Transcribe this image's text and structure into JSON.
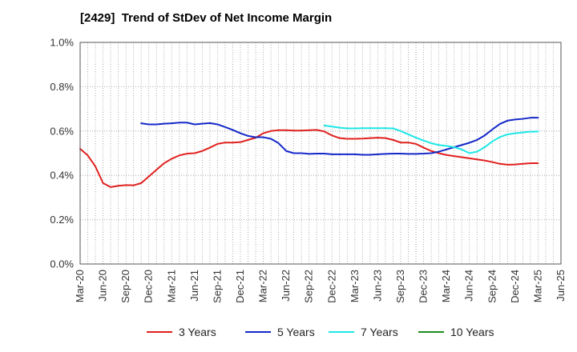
{
  "chart_data": {
    "type": "line",
    "title": "[2429]  Trend of StDev of Net Income Margin",
    "xlabel": "",
    "ylabel": "",
    "x_ticks": [
      "Mar-20",
      "Jun-20",
      "Sep-20",
      "Dec-20",
      "Mar-21",
      "Jun-21",
      "Sep-21",
      "Dec-21",
      "Mar-22",
      "Jun-22",
      "Sep-22",
      "Dec-22",
      "Mar-23",
      "Jun-23",
      "Sep-23",
      "Dec-23",
      "Mar-24",
      "Jun-24",
      "Sep-24",
      "Dec-24",
      "Mar-25",
      "Jun-25"
    ],
    "y_ticks": [
      "0.0%",
      "0.2%",
      "0.4%",
      "0.6%",
      "0.8%",
      "1.0%"
    ],
    "ylim": [
      0,
      1.0
    ],
    "y_unit": "%",
    "grid": true,
    "legend_position": "bottom",
    "series": [
      {
        "name": "3 Years",
        "color": "#e0201e",
        "points": [
          [
            "Mar-20",
            0.52
          ],
          [
            "Apr-20",
            0.49
          ],
          [
            "May-20",
            0.44
          ],
          [
            "Jun-20",
            0.365
          ],
          [
            "Jul-20",
            0.347
          ],
          [
            "Aug-20",
            0.353
          ],
          [
            "Sep-20",
            0.356
          ],
          [
            "Oct-20",
            0.355
          ],
          [
            "Nov-20",
            0.365
          ],
          [
            "Dec-20",
            0.395
          ],
          [
            "Jan-21",
            0.425
          ],
          [
            "Feb-21",
            0.455
          ],
          [
            "Mar-21",
            0.475
          ],
          [
            "Apr-21",
            0.49
          ],
          [
            "May-21",
            0.498
          ],
          [
            "Jun-21",
            0.5
          ],
          [
            "Jul-21",
            0.51
          ],
          [
            "Aug-21",
            0.525
          ],
          [
            "Sep-21",
            0.542
          ],
          [
            "Oct-21",
            0.548
          ],
          [
            "Nov-21",
            0.548
          ],
          [
            "Dec-21",
            0.55
          ],
          [
            "Jan-22",
            0.56
          ],
          [
            "Feb-22",
            0.57
          ],
          [
            "Mar-22",
            0.59
          ],
          [
            "Apr-22",
            0.6
          ],
          [
            "May-22",
            0.604
          ],
          [
            "Jun-22",
            0.604
          ],
          [
            "Jul-22",
            0.602
          ],
          [
            "Aug-22",
            0.602
          ],
          [
            "Sep-22",
            0.604
          ],
          [
            "Oct-22",
            0.605
          ],
          [
            "Nov-22",
            0.598
          ],
          [
            "Dec-22",
            0.58
          ],
          [
            "Jan-23",
            0.568
          ],
          [
            "Feb-23",
            0.565
          ],
          [
            "Mar-23",
            0.565
          ],
          [
            "Apr-23",
            0.566
          ],
          [
            "May-23",
            0.568
          ],
          [
            "Jun-23",
            0.57
          ],
          [
            "Jul-23",
            0.568
          ],
          [
            "Aug-23",
            0.56
          ],
          [
            "Sep-23",
            0.548
          ],
          [
            "Oct-23",
            0.548
          ],
          [
            "Nov-23",
            0.542
          ],
          [
            "Dec-23",
            0.525
          ],
          [
            "Jan-24",
            0.51
          ],
          [
            "Feb-24",
            0.5
          ],
          [
            "Mar-24",
            0.492
          ],
          [
            "Apr-24",
            0.487
          ],
          [
            "May-24",
            0.482
          ],
          [
            "Jun-24",
            0.477
          ],
          [
            "Jul-24",
            0.472
          ],
          [
            "Aug-24",
            0.467
          ],
          [
            "Sep-24",
            0.46
          ],
          [
            "Oct-24",
            0.452
          ],
          [
            "Nov-24",
            0.448
          ],
          [
            "Dec-24",
            0.449
          ],
          [
            "Jan-25",
            0.452
          ],
          [
            "Feb-25",
            0.455
          ],
          [
            "Mar-25",
            0.455
          ]
        ]
      },
      {
        "name": "5 Years",
        "color": "#1428c8",
        "points": [
          [
            "Nov-20",
            0.635
          ],
          [
            "Dec-20",
            0.63
          ],
          [
            "Jan-21",
            0.63
          ],
          [
            "Feb-21",
            0.633
          ],
          [
            "Mar-21",
            0.635
          ],
          [
            "Apr-21",
            0.638
          ],
          [
            "May-21",
            0.638
          ],
          [
            "Jun-21",
            0.63
          ],
          [
            "Jul-21",
            0.633
          ],
          [
            "Aug-21",
            0.636
          ],
          [
            "Sep-21",
            0.63
          ],
          [
            "Oct-21",
            0.618
          ],
          [
            "Nov-21",
            0.605
          ],
          [
            "Dec-21",
            0.59
          ],
          [
            "Jan-22",
            0.578
          ],
          [
            "Feb-22",
            0.572
          ],
          [
            "Mar-22",
            0.572
          ],
          [
            "Apr-22",
            0.565
          ],
          [
            "May-22",
            0.545
          ],
          [
            "Jun-22",
            0.51
          ],
          [
            "Jul-22",
            0.5
          ],
          [
            "Aug-22",
            0.5
          ],
          [
            "Sep-22",
            0.497
          ],
          [
            "Oct-22",
            0.498
          ],
          [
            "Nov-22",
            0.498
          ],
          [
            "Dec-22",
            0.495
          ],
          [
            "Jan-23",
            0.495
          ],
          [
            "Feb-23",
            0.495
          ],
          [
            "Mar-23",
            0.495
          ],
          [
            "Apr-23",
            0.493
          ],
          [
            "May-23",
            0.493
          ],
          [
            "Jun-23",
            0.495
          ],
          [
            "Jul-23",
            0.497
          ],
          [
            "Aug-23",
            0.498
          ],
          [
            "Sep-23",
            0.498
          ],
          [
            "Oct-23",
            0.497
          ],
          [
            "Nov-23",
            0.497
          ],
          [
            "Dec-23",
            0.498
          ],
          [
            "Jan-24",
            0.5
          ],
          [
            "Feb-24",
            0.507
          ],
          [
            "Mar-24",
            0.517
          ],
          [
            "Apr-24",
            0.527
          ],
          [
            "May-24",
            0.537
          ],
          [
            "Jun-24",
            0.547
          ],
          [
            "Jul-24",
            0.56
          ],
          [
            "Aug-24",
            0.58
          ],
          [
            "Sep-24",
            0.607
          ],
          [
            "Oct-24",
            0.632
          ],
          [
            "Nov-24",
            0.647
          ],
          [
            "Dec-24",
            0.652
          ],
          [
            "Jan-25",
            0.655
          ],
          [
            "Feb-25",
            0.66
          ],
          [
            "Mar-25",
            0.66
          ]
        ]
      },
      {
        "name": "7 Years",
        "color": "#1ee6e6",
        "points": [
          [
            "Nov-22",
            0.625
          ],
          [
            "Dec-22",
            0.62
          ],
          [
            "Jan-23",
            0.615
          ],
          [
            "Feb-23",
            0.612
          ],
          [
            "Mar-23",
            0.612
          ],
          [
            "Apr-23",
            0.613
          ],
          [
            "May-23",
            0.613
          ],
          [
            "Jun-23",
            0.613
          ],
          [
            "Jul-23",
            0.613
          ],
          [
            "Aug-23",
            0.612
          ],
          [
            "Sep-23",
            0.6
          ],
          [
            "Oct-23",
            0.585
          ],
          [
            "Nov-23",
            0.57
          ],
          [
            "Dec-23",
            0.557
          ],
          [
            "Jan-24",
            0.545
          ],
          [
            "Feb-24",
            0.537
          ],
          [
            "Mar-24",
            0.533
          ],
          [
            "Apr-24",
            0.527
          ],
          [
            "May-24",
            0.517
          ],
          [
            "Jun-24",
            0.5
          ],
          [
            "Jul-24",
            0.507
          ],
          [
            "Aug-24",
            0.527
          ],
          [
            "Sep-24",
            0.553
          ],
          [
            "Oct-24",
            0.573
          ],
          [
            "Nov-24",
            0.585
          ],
          [
            "Dec-24",
            0.59
          ],
          [
            "Jan-25",
            0.594
          ],
          [
            "Feb-25",
            0.597
          ],
          [
            "Mar-25",
            0.598
          ]
        ]
      },
      {
        "name": "10 Years",
        "color": "#1e8c1e",
        "points": []
      }
    ]
  }
}
